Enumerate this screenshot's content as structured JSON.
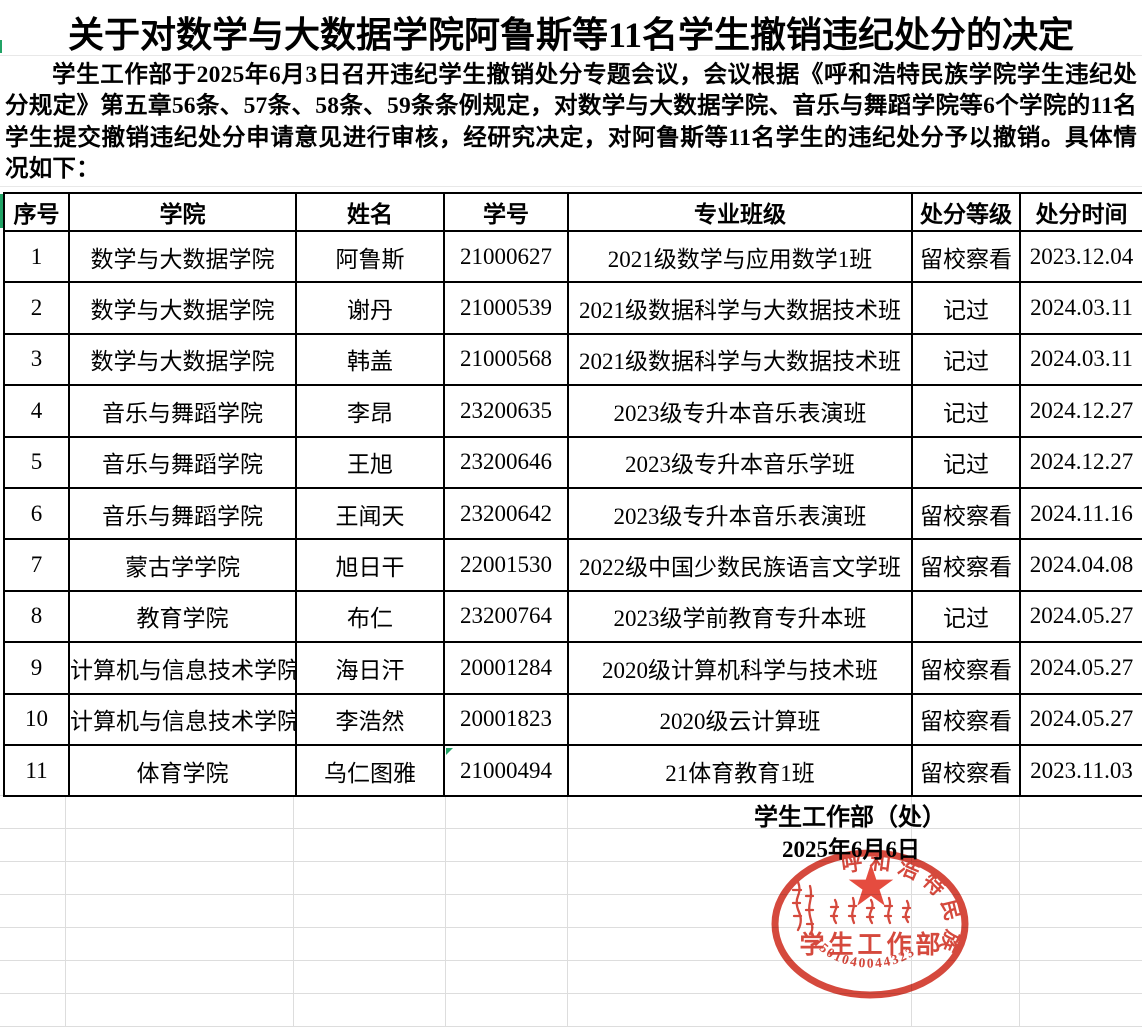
{
  "title": "关于对数学与大数据学院阿鲁斯等11名学生撤销违纪处分的决定",
  "body_paragraph": "学生工作部于2025年6月3日召开违纪学生撤销处分专题会议，会议根据《呼和浩特民族学院学生违纪处分规定》第五章56条、57条、58条、59条条例规定，对数学与大数据学院、音乐与舞蹈学院等6个学院的11名学生提交撤销违纪处分申请意见进行审核，经研究决定，对阿鲁斯等11名学生的违纪处分予以撤销。具体情况如下：",
  "table": {
    "headers": [
      "序号",
      "学院",
      "姓名",
      "学号",
      "专业班级",
      "处分等级",
      "处分时间"
    ],
    "rows": [
      [
        "1",
        "数学与大数据学院",
        "阿鲁斯",
        "21000627",
        "2021级数学与应用数学1班",
        "留校察看",
        "2023.12.04"
      ],
      [
        "2",
        "数学与大数据学院",
        "谢丹",
        "21000539",
        "2021级数据科学与大数据技术班",
        "记过",
        "2024.03.11"
      ],
      [
        "3",
        "数学与大数据学院",
        "韩盖",
        "21000568",
        "2021级数据科学与大数据技术班",
        "记过",
        "2024.03.11"
      ],
      [
        "4",
        "音乐与舞蹈学院",
        "李昂",
        "23200635",
        "2023级专升本音乐表演班",
        "记过",
        "2024.12.27"
      ],
      [
        "5",
        "音乐与舞蹈学院",
        "王旭",
        "23200646",
        "2023级专升本音乐学班",
        "记过",
        "2024.12.27"
      ],
      [
        "6",
        "音乐与舞蹈学院",
        "王闻天",
        "23200642",
        "2023级专升本音乐表演班",
        "留校察看",
        "2024.11.16"
      ],
      [
        "7",
        "蒙古学学院",
        "旭日干",
        "22001530",
        "2022级中国少数民族语言文学班",
        "留校察看",
        "2024.04.08"
      ],
      [
        "8",
        "教育学院",
        "布仁",
        "23200764",
        "2023级学前教育专升本班",
        "记过",
        "2024.05.27"
      ],
      [
        "9",
        "计算机与信息技术学院",
        "海日汗",
        "20001284",
        "2020级计算机科学与技术班",
        "留校察看",
        "2024.05.27"
      ],
      [
        "10",
        "计算机与信息技术学院",
        "李浩然",
        "20001823",
        "2020级云计算班",
        "留校察看",
        "2024.05.27"
      ],
      [
        "11",
        "体育学院",
        "乌仁图雅",
        "21000494",
        "21体育教育1班",
        "留校察看",
        "2023.11.03"
      ]
    ]
  },
  "signature": {
    "department": "学生工作部（处）",
    "date": "2025年6月6日"
  },
  "stamp": {
    "ring_text": "呼和浩特民族学院",
    "center_text": "学生工作部",
    "serial_number": "1501040044323",
    "star_icon": "★",
    "color": "#cf2f22"
  },
  "colors": {
    "stamp_red": "#cf2f22",
    "indicator_green": "#21a366",
    "gridline_gray": "#dddddd",
    "table_border": "#000000"
  }
}
